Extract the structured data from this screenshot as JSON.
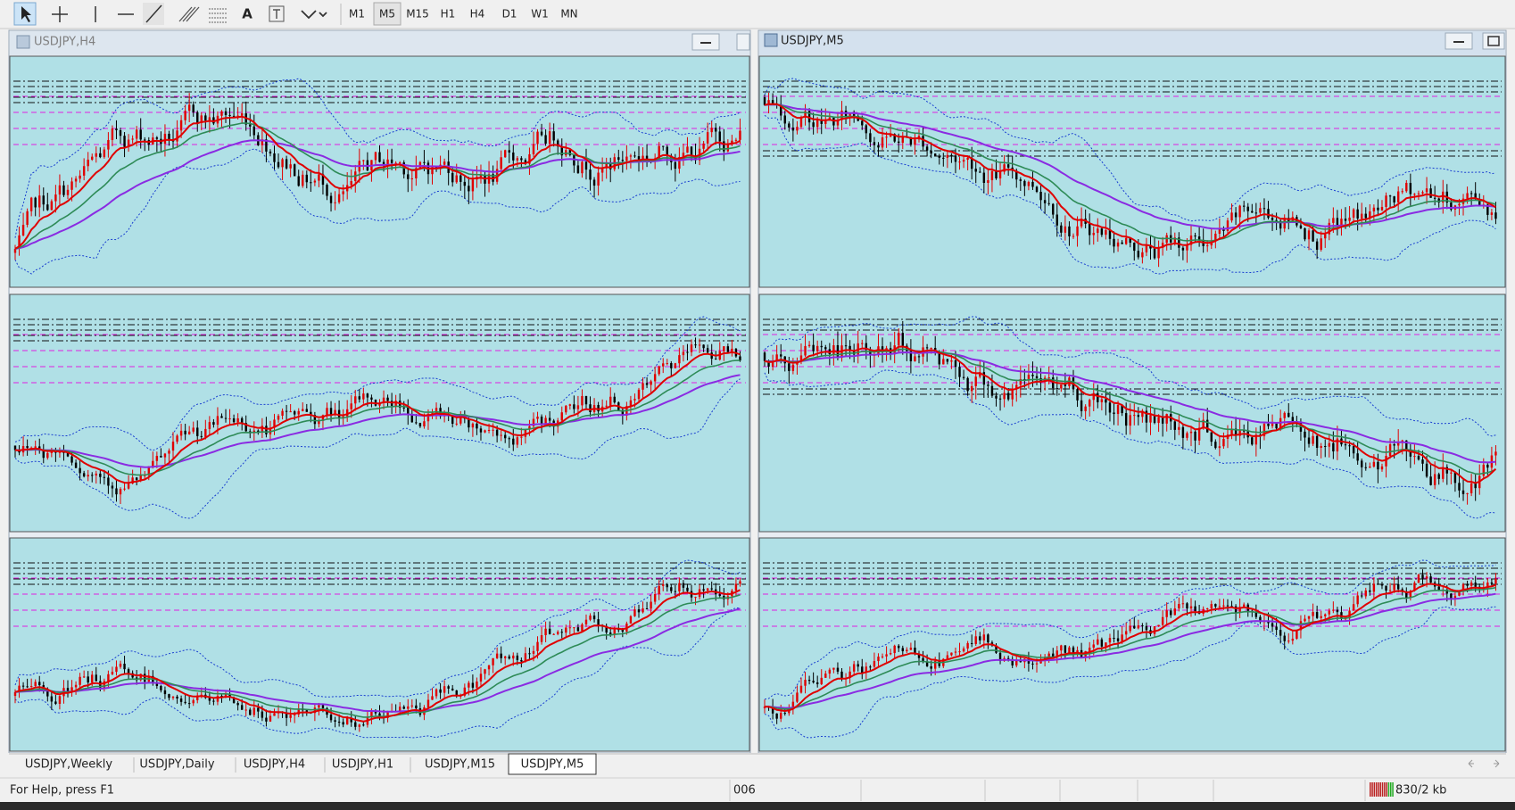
{
  "toolbar": {
    "text_tool": "A",
    "timeframes": [
      "M1",
      "M5",
      "M15",
      "H1",
      "H4",
      "D1",
      "W1",
      "MN"
    ],
    "active_timeframe": "M5"
  },
  "windows": [
    {
      "title": "USDJPY,H4"
    },
    {
      "title": "USDJPY,M5"
    }
  ],
  "tabs": [
    "USDJPY,Weekly",
    "USDJPY,Daily",
    "USDJPY,H4",
    "USDJPY,H1",
    "USDJPY,M15",
    "USDJPY,M5"
  ],
  "active_tab": "USDJPY,M5",
  "status_bar": {
    "help": "For Help, press F1",
    "field": "006",
    "traffic": "830/2 kb"
  }
}
